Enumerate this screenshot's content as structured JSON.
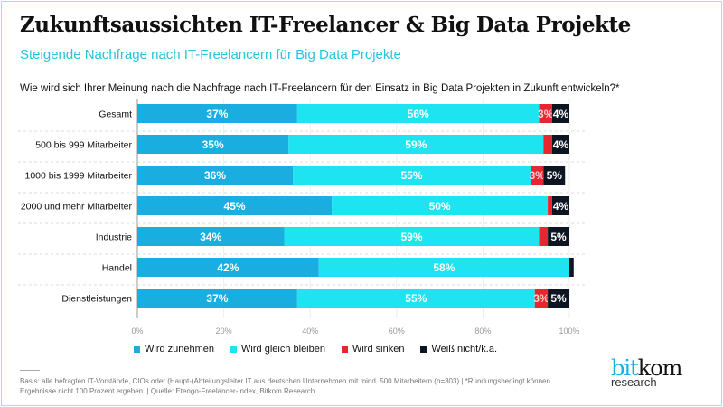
{
  "header": {
    "title": "Zukunftsaussichten IT-Freelancer & Big Data Projekte",
    "subtitle": "Steigende Nachfrage nach IT-Freelancern für Big Data Projekte",
    "question": "Wie wird sich Ihrer Meinung nach die Nachfrage nach IT-Freelancern für den Einsatz in Big Data Projekten in Zukunft entwickeln?*"
  },
  "chart_data": {
    "type": "bar",
    "orientation": "horizontal",
    "stacked": true,
    "categories": [
      "Gesamt",
      "500 bis 999 Mitarbeiter",
      "1000 bis 1999 Mitarbeiter",
      "2000 und mehr Mitarbeiter",
      "Industrie",
      "Handel",
      "Dienstleistungen"
    ],
    "series": [
      {
        "name": "Wird zunehmen",
        "color": "#1aaee0",
        "values": [
          37,
          35,
          36,
          45,
          34,
          42,
          37
        ],
        "labels": [
          "37%",
          "35%",
          "36%",
          "45%",
          "34%",
          "42%",
          "37%"
        ]
      },
      {
        "name": "Wird gleich bleiben",
        "color": "#1ee3f0",
        "values": [
          56,
          59,
          55,
          50,
          59,
          58,
          55
        ],
        "labels": [
          "56%",
          "59%",
          "55%",
          "50%",
          "59%",
          "58%",
          "55%"
        ]
      },
      {
        "name": "Wird sinken",
        "color": "#e8262f",
        "values": [
          3,
          2,
          3,
          1,
          2,
          0,
          3
        ],
        "labels": [
          "3%",
          "",
          "3%",
          "",
          "",
          "",
          "3%"
        ]
      },
      {
        "name": "Weiß nicht/k.a.",
        "color": "#0e1522",
        "values": [
          4,
          4,
          5,
          4,
          5,
          1,
          5
        ],
        "labels": [
          "4%",
          "4%",
          "5%",
          "4%",
          "5%",
          "",
          "5%"
        ]
      }
    ],
    "xlim": [
      0,
      100
    ],
    "xticks": [
      "0%",
      "20%",
      "40%",
      "60%",
      "80%",
      "100%"
    ],
    "grid": true,
    "legend": "bottom"
  },
  "footer": {
    "note": "Basis: alle befragten IT-Vorstände, CIOs oder (Haupt-)Abteilungsleiter IT aus deutschen Unternehmen mit mind. 500 Mitarbeitern (n=303) | *Rundungsbedingt können Ergebnisse nicht 100 Prozent ergeben. | Quelle: Etengo-Freelancer-Index, Bitkom Research"
  },
  "logo": {
    "part1": "bit",
    "part2": "kom",
    "sub": "research",
    "color1": "#1aaee0"
  }
}
